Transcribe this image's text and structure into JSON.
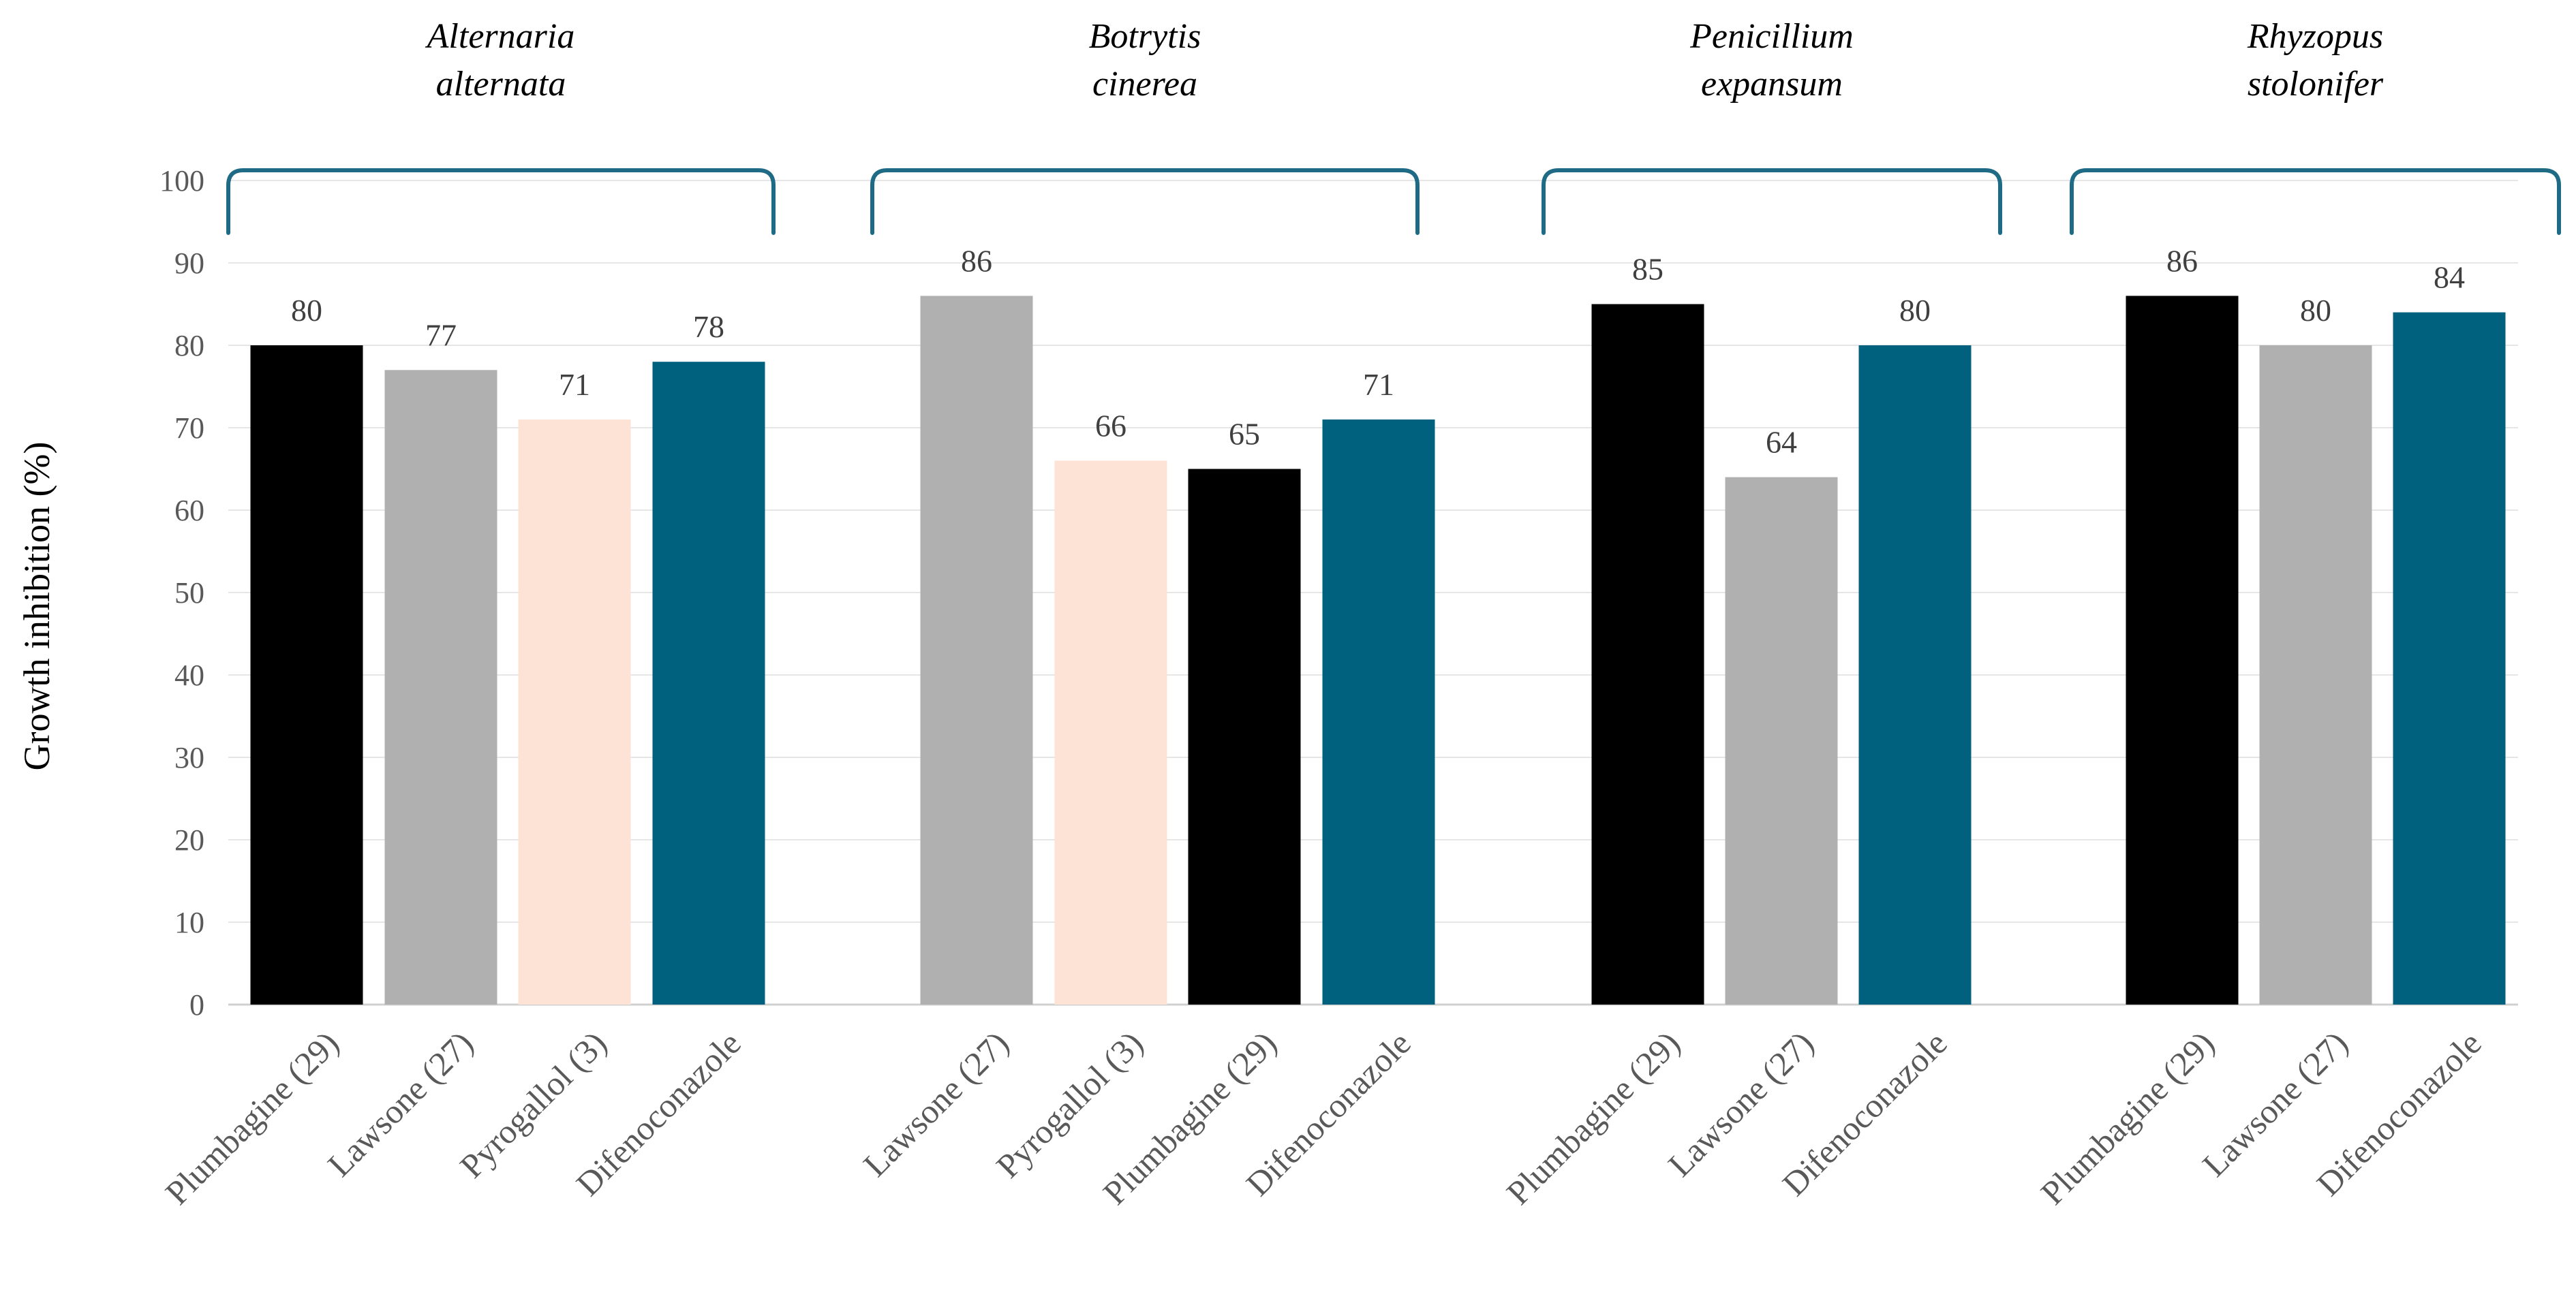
{
  "chart_data": {
    "type": "bar",
    "title": "",
    "ylabel": "Growth inhibition (%)",
    "xlabel": "",
    "ylim": [
      0,
      100
    ],
    "yticks": [
      0,
      10,
      20,
      30,
      40,
      50,
      60,
      70,
      80,
      90,
      100
    ],
    "grid": true,
    "colors": {
      "Plumbagine (29)": "#000000",
      "Lawsone (27)": "#b0b0b0",
      "Pyrogallol (3)": "#fde3d6",
      "Difenoconazole": "#00617f",
      "brace": "#1f6a85"
    },
    "groups": [
      {
        "name_line1": "Alternaria",
        "name_line2": "alternata",
        "bars": [
          {
            "label": "Plumbagine (29)",
            "value": 80
          },
          {
            "label": "Lawsone (27)",
            "value": 77
          },
          {
            "label": "Pyrogallol (3)",
            "value": 71
          },
          {
            "label": "Difenoconazole",
            "value": 78
          }
        ]
      },
      {
        "name_line1": "Botrytis",
        "name_line2": "cinerea",
        "bars": [
          {
            "label": "Lawsone (27)",
            "value": 86
          },
          {
            "label": "Pyrogallol (3)",
            "value": 66
          },
          {
            "label": "Plumbagine (29)",
            "value": 65
          },
          {
            "label": "Difenoconazole",
            "value": 71
          }
        ]
      },
      {
        "name_line1": "Penicillium",
        "name_line2": "expansum",
        "bars": [
          {
            "label": "Plumbagine (29)",
            "value": 85
          },
          {
            "label": "Lawsone (27)",
            "value": 64
          },
          {
            "label": "Difenoconazole",
            "value": 80
          }
        ]
      },
      {
        "name_line1": "Rhyzopus",
        "name_line2": "stolonifer",
        "bars": [
          {
            "label": "Plumbagine (29)",
            "value": 86
          },
          {
            "label": "Lawsone (27)",
            "value": 80
          },
          {
            "label": "Difenoconazole",
            "value": 84
          }
        ]
      }
    ]
  }
}
